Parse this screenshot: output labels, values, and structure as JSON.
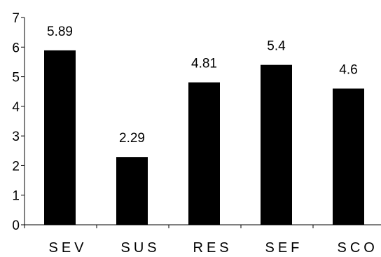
{
  "chart_data": {
    "type": "bar",
    "categories": [
      "SEV",
      "SUS",
      "RES",
      "SEF",
      "SCO"
    ],
    "values": [
      5.89,
      2.29,
      4.81,
      5.4,
      4.6
    ],
    "value_labels": [
      "5.89",
      "2.29",
      "4.81",
      "5.4",
      "4.6"
    ],
    "ylim": [
      0,
      7
    ],
    "yticks": [
      "0",
      "1",
      "2",
      "3",
      "4",
      "5",
      "6",
      "7"
    ],
    "grid": false,
    "legend": "none",
    "bar_color": "#000000",
    "axis_color": "#000000",
    "cropped_right": true
  }
}
